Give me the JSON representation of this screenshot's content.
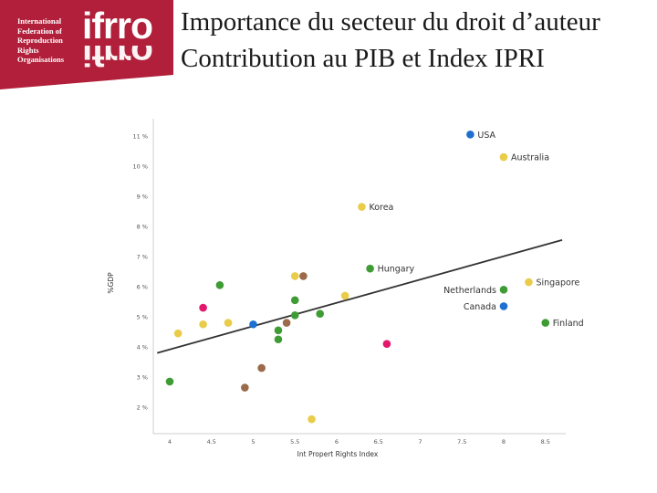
{
  "header": {
    "org_lines": [
      "International",
      "Federation of",
      "Reproduction",
      "Rights",
      "Organisations"
    ],
    "brand": "ifrro",
    "title_line1": "Importance du secteur du droit d’auteur",
    "title_line2": "Contribution au PIB et Index IPRI",
    "brand_color": "#b11f3a"
  },
  "chart_data": {
    "type": "scatter",
    "xlabel": "Int Propert Rights Index",
    "ylabel": "%GDP",
    "xlim": [
      3.9,
      8.6
    ],
    "ylim": [
      1.5,
      11.3
    ],
    "xticks": [
      4,
      4.5,
      5,
      5.5,
      6,
      6.5,
      7,
      7.5,
      8,
      8.5
    ],
    "xtick_labels": [
      "4",
      "4.5",
      "5",
      "5.5",
      "6",
      "6.5",
      "7",
      "7.5",
      "8",
      "8.5"
    ],
    "yticks": [
      2,
      3,
      4,
      5,
      6,
      7,
      8,
      9,
      10,
      11
    ],
    "ytick_labels": [
      "2 %",
      "3 %",
      "4 %",
      "5 %",
      "6 %",
      "7 %",
      "8 %",
      "9 %",
      "10 %",
      "11 %"
    ],
    "trendline": {
      "x": [
        3.85,
        8.7
      ],
      "y": [
        3.8,
        7.55
      ]
    },
    "colors": {
      "blue": "#1f6fd1",
      "yellow": "#e8cc4a",
      "green": "#3f9c35",
      "brown": "#9b6b4a",
      "pink": "#e3186c"
    },
    "points": [
      {
        "x": 7.6,
        "y": 11.05,
        "color": "blue",
        "label": "USA"
      },
      {
        "x": 8.0,
        "y": 10.3,
        "color": "yellow",
        "label": "Australia"
      },
      {
        "x": 6.3,
        "y": 8.65,
        "color": "yellow",
        "label": "Korea"
      },
      {
        "x": 6.4,
        "y": 6.6,
        "color": "green",
        "label": "Hungary"
      },
      {
        "x": 8.3,
        "y": 6.15,
        "color": "yellow",
        "label": "Singapore"
      },
      {
        "x": 8.0,
        "y": 5.9,
        "color": "green",
        "label": "Netherlands"
      },
      {
        "x": 8.0,
        "y": 5.35,
        "color": "blue",
        "label": "Canada"
      },
      {
        "x": 8.5,
        "y": 4.8,
        "color": "green",
        "label": "Finland"
      },
      {
        "x": 4.6,
        "y": 6.05,
        "color": "green",
        "label": ""
      },
      {
        "x": 5.5,
        "y": 6.35,
        "color": "yellow",
        "label": ""
      },
      {
        "x": 5.6,
        "y": 6.35,
        "color": "brown",
        "label": ""
      },
      {
        "x": 5.5,
        "y": 5.55,
        "color": "green",
        "label": ""
      },
      {
        "x": 6.1,
        "y": 5.7,
        "color": "yellow",
        "label": ""
      },
      {
        "x": 4.4,
        "y": 5.3,
        "color": "pink",
        "label": ""
      },
      {
        "x": 5.5,
        "y": 5.05,
        "color": "green",
        "label": ""
      },
      {
        "x": 5.8,
        "y": 5.1,
        "color": "green",
        "label": ""
      },
      {
        "x": 4.4,
        "y": 4.75,
        "color": "yellow",
        "label": ""
      },
      {
        "x": 4.7,
        "y": 4.8,
        "color": "yellow",
        "label": ""
      },
      {
        "x": 5.0,
        "y": 4.75,
        "color": "blue",
        "label": ""
      },
      {
        "x": 5.4,
        "y": 4.8,
        "color": "brown",
        "label": ""
      },
      {
        "x": 5.3,
        "y": 4.55,
        "color": "green",
        "label": ""
      },
      {
        "x": 4.1,
        "y": 4.45,
        "color": "yellow",
        "label": ""
      },
      {
        "x": 5.3,
        "y": 4.25,
        "color": "green",
        "label": ""
      },
      {
        "x": 6.6,
        "y": 4.1,
        "color": "pink",
        "label": ""
      },
      {
        "x": 5.1,
        "y": 3.3,
        "color": "brown",
        "label": ""
      },
      {
        "x": 4.0,
        "y": 2.85,
        "color": "green",
        "label": ""
      },
      {
        "x": 4.9,
        "y": 2.65,
        "color": "brown",
        "label": ""
      },
      {
        "x": 5.7,
        "y": 1.6,
        "color": "yellow",
        "label": ""
      }
    ]
  }
}
